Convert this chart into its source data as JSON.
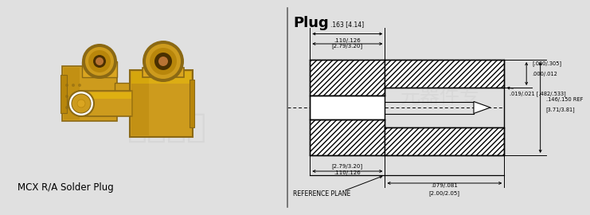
{
  "bg_left": "#ffffff",
  "bg_right": "#ffffff",
  "fig_bg": "#e0e0e0",
  "title": "Plug",
  "caption": "MCX R/A Solder Plug",
  "lc": "#000000",
  "dims": {
    "top_width_label": ".163 [4.14]",
    "inner_width_top": ".110/.126",
    "inner_width_top2": "[2.79/3.20]",
    "right_top_label1": "[.000/.305]",
    "right_top_label2": ".000/.012",
    "right_mid_label": ".019/.021 [.482/.533]",
    "right_main_label1": ".146/.150 REF",
    "right_main_label2": "[3.71/3.81]",
    "bottom_inner1": "[2.79/3.20]",
    "bottom_inner2": ".110/.126",
    "bottom_right1": ".079/.081",
    "bottom_right2": "[2.00/2.05]",
    "ref_plane_label": "REFERENCE PLANE"
  },
  "gold_dark": "#b8860b",
  "gold_mid": "#cd9b1d",
  "gold_light": "#daa520",
  "gold_bright": "#ffd700",
  "gold_shadow": "#8b6914",
  "copper": "#b87333",
  "dark_brown": "#4a3000",
  "white": "#ffffff"
}
